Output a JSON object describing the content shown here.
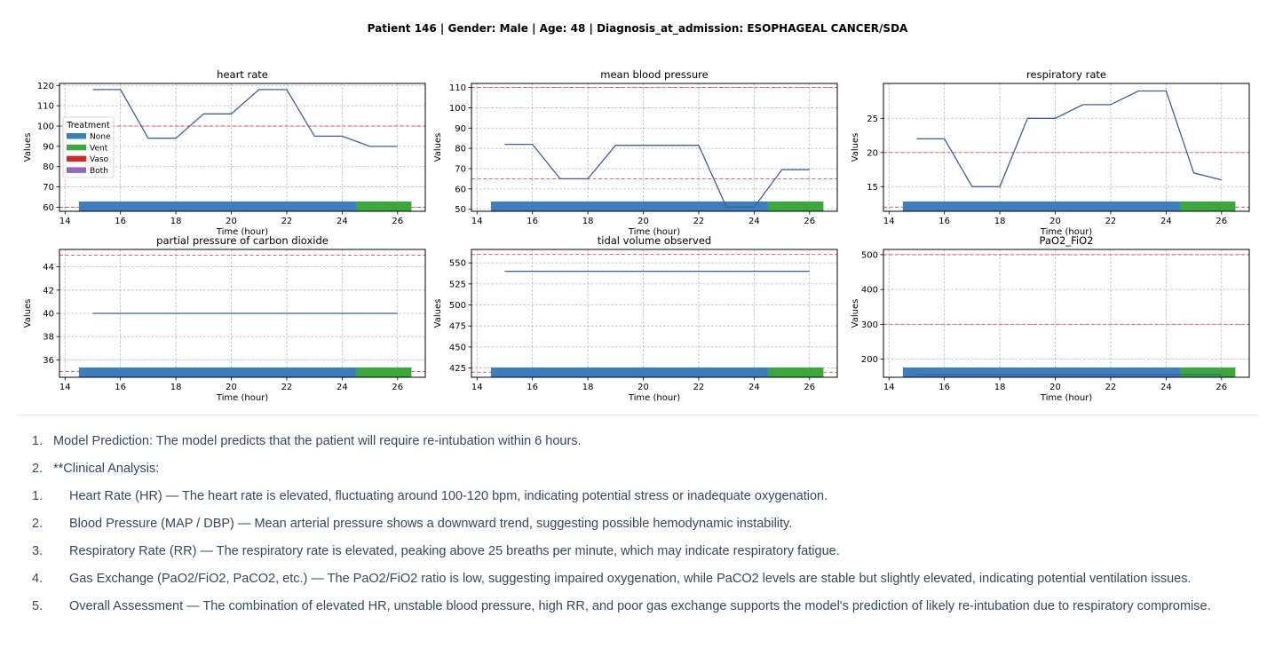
{
  "figure_title": "Patient 146 | Gender: Male | Age: 48 | Diagnosis_at_admission: ESOPHAGEAL CANCER/SDA",
  "legend": {
    "title": "Treatment",
    "items": [
      {
        "label": "None",
        "color": "#3c7fbf"
      },
      {
        "label": "Vent",
        "color": "#3aa83a"
      },
      {
        "label": "Vaso",
        "color": "#d62728"
      },
      {
        "label": "Both",
        "color": "#9467bd"
      }
    ]
  },
  "colors": {
    "line": "#3d5f9e",
    "threshold": "#d9534f",
    "grid": "#b0b0b0",
    "none": "#3c7fbf",
    "vent": "#3aa83a"
  },
  "chart_data": [
    {
      "type": "line",
      "title": "heart rate",
      "xlabel": "Time (hour)",
      "ylabel": "Values",
      "xlim": [
        13.8,
        27.0
      ],
      "ylim": [
        58,
        121
      ],
      "xticks": [
        "14",
        "16",
        "18",
        "20",
        "22",
        "24",
        "26"
      ],
      "yticks": [
        "60",
        "70",
        "80",
        "90",
        "100",
        "110",
        "120"
      ],
      "x": [
        15,
        16,
        17,
        18,
        19,
        20,
        21,
        22,
        23,
        24,
        25,
        26
      ],
      "y": [
        118,
        118,
        94,
        94,
        106,
        106,
        118,
        118,
        95,
        95,
        90,
        90
      ],
      "thresholds": [
        60,
        100
      ],
      "treatment": [
        {
          "state": "None",
          "start": 14.5,
          "end": 24.5
        },
        {
          "state": "Vent",
          "start": 24.5,
          "end": 26.5
        }
      ],
      "grid": true,
      "legend": "center-left"
    },
    {
      "type": "line",
      "title": "mean blood pressure",
      "xlabel": "Time (hour)",
      "ylabel": "Values",
      "xlim": [
        13.8,
        27.0
      ],
      "ylim": [
        49,
        112
      ],
      "xticks": [
        "14",
        "16",
        "18",
        "20",
        "22",
        "24",
        "26"
      ],
      "yticks": [
        "50",
        "60",
        "70",
        "80",
        "90",
        "100",
        "110"
      ],
      "x": [
        15,
        16,
        17,
        18,
        19,
        20,
        21,
        22,
        23,
        24,
        25,
        26
      ],
      "y": [
        82,
        82,
        65,
        65,
        81.5,
        81.5,
        81.5,
        81.5,
        51,
        51,
        69.5,
        69.5
      ],
      "thresholds": [
        65,
        110
      ],
      "treatment": [
        {
          "state": "None",
          "start": 14.5,
          "end": 24.5
        },
        {
          "state": "Vent",
          "start": 24.5,
          "end": 26.5
        }
      ],
      "grid": true
    },
    {
      "type": "line",
      "title": "respiratory rate",
      "xlabel": "Time (hour)",
      "ylabel": "Values",
      "xlim": [
        13.8,
        27.0
      ],
      "ylim": [
        11.4,
        30.1
      ],
      "xticks": [
        "14",
        "16",
        "18",
        "20",
        "22",
        "24",
        "26"
      ],
      "yticks": [
        "15",
        "20",
        "25"
      ],
      "x": [
        15,
        16,
        17,
        18,
        19,
        20,
        21,
        22,
        23,
        24,
        25,
        26
      ],
      "y": [
        22,
        22,
        15,
        15,
        25,
        25,
        27,
        27,
        29,
        29,
        17,
        16
      ],
      "thresholds": [
        12,
        20
      ],
      "treatment": [
        {
          "state": "None",
          "start": 14.5,
          "end": 24.5
        },
        {
          "state": "Vent",
          "start": 24.5,
          "end": 26.5
        }
      ],
      "grid": true
    },
    {
      "type": "line",
      "title": "partial pressure of carbon dioxide",
      "xlabel": "Time (hour)",
      "ylabel": "Values",
      "xlim": [
        13.8,
        27.0
      ],
      "ylim": [
        34.5,
        45.5
      ],
      "xticks": [
        "14",
        "16",
        "18",
        "20",
        "22",
        "24",
        "26"
      ],
      "yticks": [
        "36",
        "38",
        "40",
        "42",
        "44"
      ],
      "x": [
        15,
        16,
        17,
        18,
        19,
        20,
        21,
        22,
        23,
        24,
        25,
        26
      ],
      "y": [
        40,
        40,
        40,
        40,
        40,
        40,
        40,
        40,
        40,
        40,
        40,
        40
      ],
      "thresholds": [
        35,
        45
      ],
      "treatment": [
        {
          "state": "None",
          "start": 14.5,
          "end": 24.5
        },
        {
          "state": "Vent",
          "start": 24.5,
          "end": 26.5
        }
      ],
      "grid": true
    },
    {
      "type": "line",
      "title": "tidal volume observed",
      "xlabel": "Time (hour)",
      "ylabel": "Values",
      "xlim": [
        13.8,
        27.0
      ],
      "ylim": [
        414,
        566
      ],
      "xticks": [
        "14",
        "16",
        "18",
        "20",
        "22",
        "24",
        "26"
      ],
      "yticks": [
        "425",
        "450",
        "475",
        "500",
        "525",
        "550"
      ],
      "x": [
        15,
        16,
        17,
        18,
        19,
        20,
        21,
        22,
        23,
        24,
        25,
        26
      ],
      "y": [
        540,
        540,
        540,
        540,
        540,
        540,
        540,
        540,
        540,
        540,
        540,
        540
      ],
      "thresholds": [
        420,
        560
      ],
      "treatment": [
        {
          "state": "None",
          "start": 14.5,
          "end": 24.5
        },
        {
          "state": "Vent",
          "start": 24.5,
          "end": 26.5
        }
      ],
      "grid": true
    },
    {
      "type": "line",
      "title": "PaO2_FiO2",
      "xlabel": "Time (hour)",
      "ylabel": "Values",
      "xlim": [
        13.8,
        27.0
      ],
      "ylim": [
        148,
        515
      ],
      "xticks": [
        "14",
        "16",
        "18",
        "20",
        "22",
        "24",
        "26"
      ],
      "yticks": [
        "200",
        "300",
        "400",
        "500"
      ],
      "x": [
        15,
        16,
        17,
        18,
        19,
        20,
        21,
        22,
        23,
        24,
        25,
        26
      ],
      "y": [
        156,
        156,
        156,
        156,
        156,
        156,
        156,
        156,
        156,
        156,
        156,
        156
      ],
      "thresholds": [
        300,
        500
      ],
      "treatment": [
        {
          "state": "None",
          "start": 14.5,
          "end": 24.5
        },
        {
          "state": "Vent",
          "start": 24.5,
          "end": 26.5
        }
      ],
      "grid": true
    }
  ],
  "analysis": [
    {
      "num": "1.",
      "text": "Model Prediction: The model predicts that the patient will require re-intubation within 6 hours."
    },
    {
      "num": "2.",
      "text": "**Clinical Analysis:"
    },
    {
      "num": "1.",
      "text": "Heart Rate (HR) — The heart rate is elevated, fluctuating around 100-120 bpm, indicating potential stress or inadequate oxygenation."
    },
    {
      "num": "2.",
      "text": "Blood Pressure (MAP / DBP) — Mean arterial pressure shows a downward trend, suggesting possible hemodynamic instability."
    },
    {
      "num": "3.",
      "text": "Respiratory Rate (RR) — The respiratory rate is elevated, peaking above 25 breaths per minute, which may indicate respiratory fatigue."
    },
    {
      "num": "4.",
      "text": "Gas Exchange (PaO2/FiO2, PaCO2, etc.) — The PaO2/FiO2 ratio is low, suggesting impaired oxygenation, while PaCO2 levels are stable but slightly elevated, indicating potential ventilation issues."
    },
    {
      "num": "5.",
      "text": "Overall Assessment — The combination of elevated HR, unstable blood pressure, high RR, and poor gas exchange supports the model's prediction of likely re-intubation due to respiratory compromise."
    }
  ]
}
